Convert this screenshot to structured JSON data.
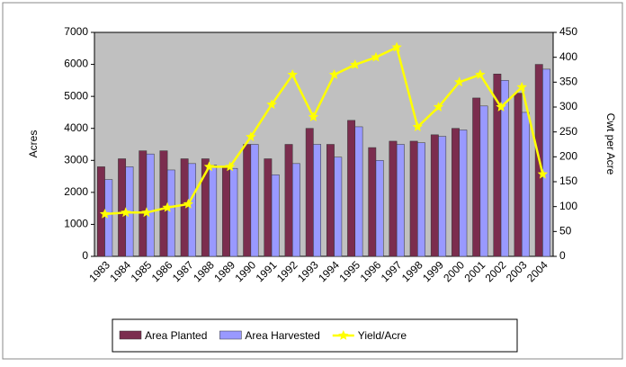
{
  "chart_data": {
    "type": "bar-line",
    "y_label": "Acres",
    "y2_label": "Cwt per Acre",
    "categories": [
      "1983",
      "1984",
      "1985",
      "1986",
      "1987",
      "1988",
      "1989",
      "1990",
      "1991",
      "1992",
      "1993",
      "1994",
      "1995",
      "1996",
      "1997",
      "1998",
      "1999",
      "2000",
      "2001",
      "2002",
      "2003",
      "2004"
    ],
    "series": [
      {
        "name": "Area Planted",
        "color": "#7b2d4e",
        "type": "bar",
        "values": [
          2800,
          3050,
          3300,
          3300,
          3050,
          3050,
          2800,
          3500,
          3050,
          3500,
          4000,
          3500,
          4250,
          3400,
          3600,
          3600,
          3800,
          4000,
          4950,
          5700,
          5100,
          6000
        ]
      },
      {
        "name": "Area Harvested",
        "color": "#9999ff",
        "type": "bar",
        "values": [
          2400,
          2800,
          3200,
          2700,
          2900,
          2850,
          2750,
          3500,
          2550,
          2900,
          3500,
          3100,
          4050,
          3000,
          3500,
          3550,
          3750,
          3950,
          4700,
          5500,
          4500,
          5850
        ]
      },
      {
        "name": "Yield/Acre",
        "color": "#ffff00",
        "type": "line",
        "axis": "y2",
        "values": [
          85,
          88,
          88,
          98,
          105,
          180,
          180,
          240,
          305,
          365,
          280,
          365,
          385,
          400,
          420,
          260,
          300,
          350,
          365,
          300,
          340,
          165
        ]
      }
    ],
    "ylim": [
      0,
      7000
    ],
    "yticks": [
      0,
      1000,
      2000,
      3000,
      4000,
      5000,
      6000,
      7000
    ],
    "y2lim": [
      0,
      450
    ],
    "y2ticks": [
      0,
      50,
      100,
      150,
      200,
      250,
      300,
      350,
      400,
      450
    ],
    "plot_background": "#c0c0c0"
  }
}
